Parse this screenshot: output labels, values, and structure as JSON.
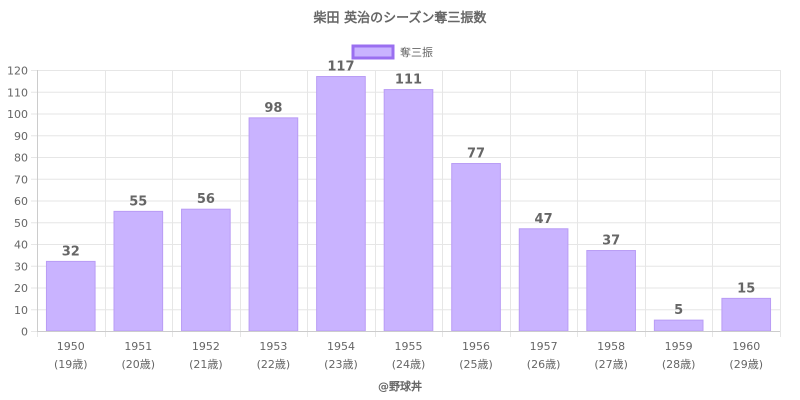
{
  "chart_data": {
    "type": "bar",
    "title": "柴田 英治のシーズン奪三振数",
    "categories": [
      "1950",
      "1951",
      "1952",
      "1953",
      "1954",
      "1955",
      "1956",
      "1957",
      "1958",
      "1959",
      "1960"
    ],
    "category_sublabels": [
      "(19歳)",
      "(20歳)",
      "(21歳)",
      "(22歳)",
      "(23歳)",
      "(24歳)",
      "(25歳)",
      "(26歳)",
      "(27歳)",
      "(28歳)",
      "(29歳)"
    ],
    "series": [
      {
        "name": "奪三振",
        "values": [
          32,
          55,
          56,
          98,
          117,
          111,
          77,
          47,
          37,
          5,
          15
        ]
      }
    ],
    "ylim": [
      0,
      120
    ],
    "yticks": [
      0,
      10,
      20,
      30,
      40,
      50,
      60,
      70,
      80,
      90,
      100,
      110,
      120
    ],
    "grid": true,
    "legend_position": "top",
    "bar_color": "#c9b3ff",
    "bar_border_color": "#b99cf5",
    "legend_border_color": "#9a6ff0"
  },
  "credit": "@野球丼"
}
